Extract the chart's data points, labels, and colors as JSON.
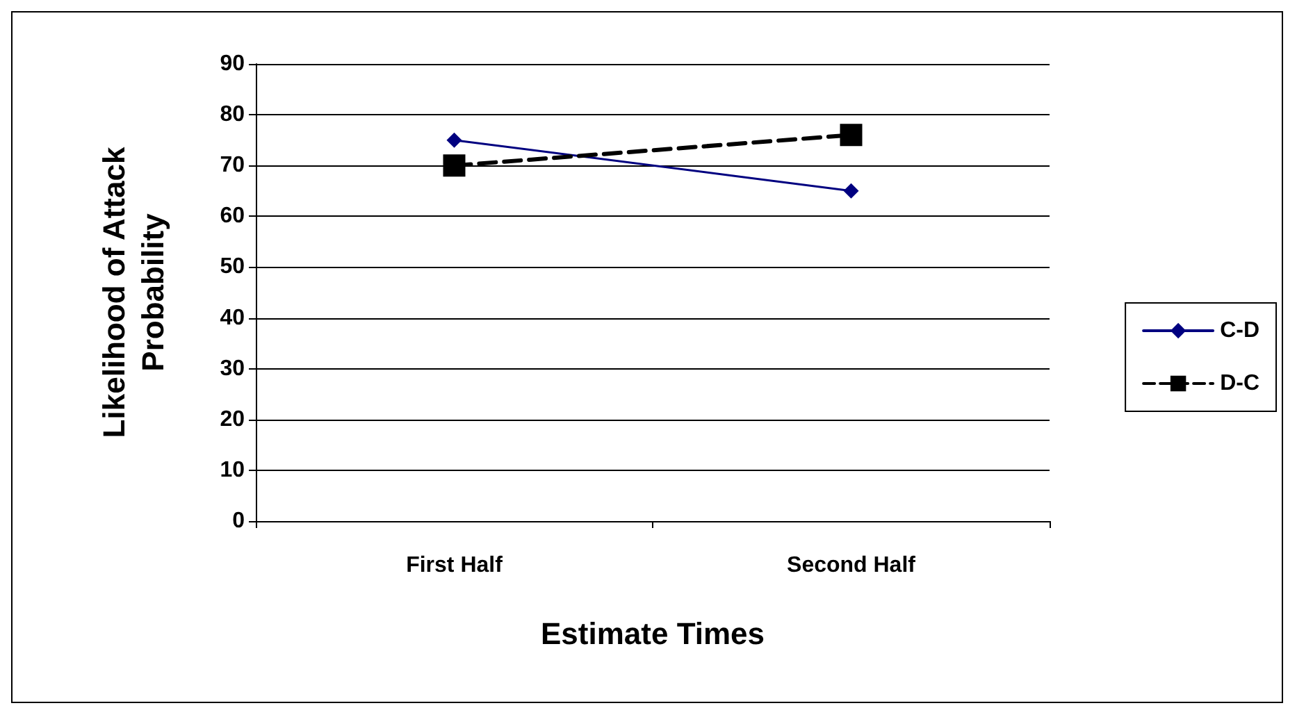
{
  "chart_data": {
    "type": "line",
    "categories": [
      "First Half",
      "Second Half"
    ],
    "series": [
      {
        "name": "C-D",
        "color": "#000080",
        "values": [
          75,
          65
        ],
        "marker": "diamond",
        "line_style": "solid"
      },
      {
        "name": "D-C",
        "color": "#000000",
        "values": [
          70,
          76
        ],
        "marker": "square",
        "line_style": "dashed"
      }
    ],
    "xlabel": "Estimate Times",
    "ylabel": "Likelihood of Attack\nProbability",
    "ylim": [
      0,
      90
    ],
    "yticks": [
      0,
      10,
      20,
      30,
      40,
      50,
      60,
      70,
      80,
      90
    ],
    "grid": "y",
    "legend": "right"
  }
}
